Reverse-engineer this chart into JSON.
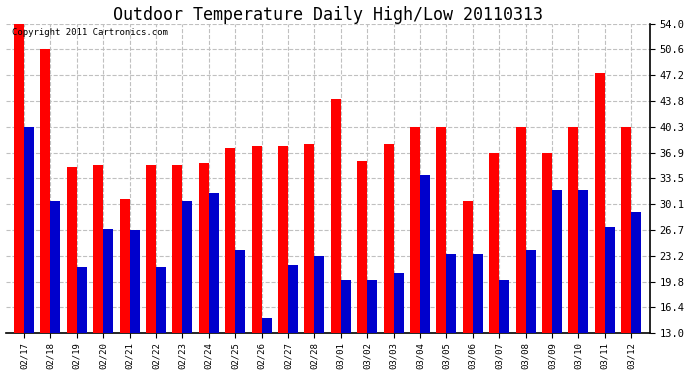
{
  "title": "Outdoor Temperature Daily High/Low 20110313",
  "copyright": "Copyright 2011 Cartronics.com",
  "dates": [
    "02/17",
    "02/18",
    "02/19",
    "02/20",
    "02/21",
    "02/22",
    "02/23",
    "02/24",
    "02/25",
    "02/26",
    "02/27",
    "02/28",
    "03/01",
    "03/02",
    "03/03",
    "03/04",
    "03/05",
    "03/06",
    "03/07",
    "03/08",
    "03/09",
    "03/10",
    "03/11",
    "03/12"
  ],
  "highs": [
    54.0,
    50.6,
    35.0,
    35.2,
    30.8,
    35.2,
    35.2,
    35.5,
    37.5,
    37.8,
    37.8,
    38.1,
    44.0,
    35.8,
    38.0,
    40.3,
    40.3,
    30.5,
    36.9,
    40.3,
    36.9,
    40.3,
    47.5,
    40.3
  ],
  "lows": [
    40.3,
    30.5,
    21.7,
    26.8,
    26.7,
    21.7,
    30.5,
    31.5,
    24.0,
    15.0,
    22.0,
    23.2,
    20.0,
    20.0,
    21.0,
    34.0,
    23.5,
    23.5,
    20.0,
    24.0,
    32.0,
    32.0,
    27.0,
    29.0
  ],
  "high_color": "#ff0000",
  "low_color": "#0000cc",
  "background_color": "#ffffff",
  "grid_color": "#c0c0c0",
  "yticks": [
    13.0,
    16.4,
    19.8,
    23.2,
    26.7,
    30.1,
    33.5,
    36.9,
    40.3,
    43.8,
    47.2,
    50.6,
    54.0
  ],
  "ymin": 13.0,
  "ymax": 54.0,
  "title_fontsize": 12,
  "copyright_fontsize": 6.5,
  "bar_width": 0.38,
  "figwidth": 6.9,
  "figheight": 3.75,
  "dpi": 100
}
